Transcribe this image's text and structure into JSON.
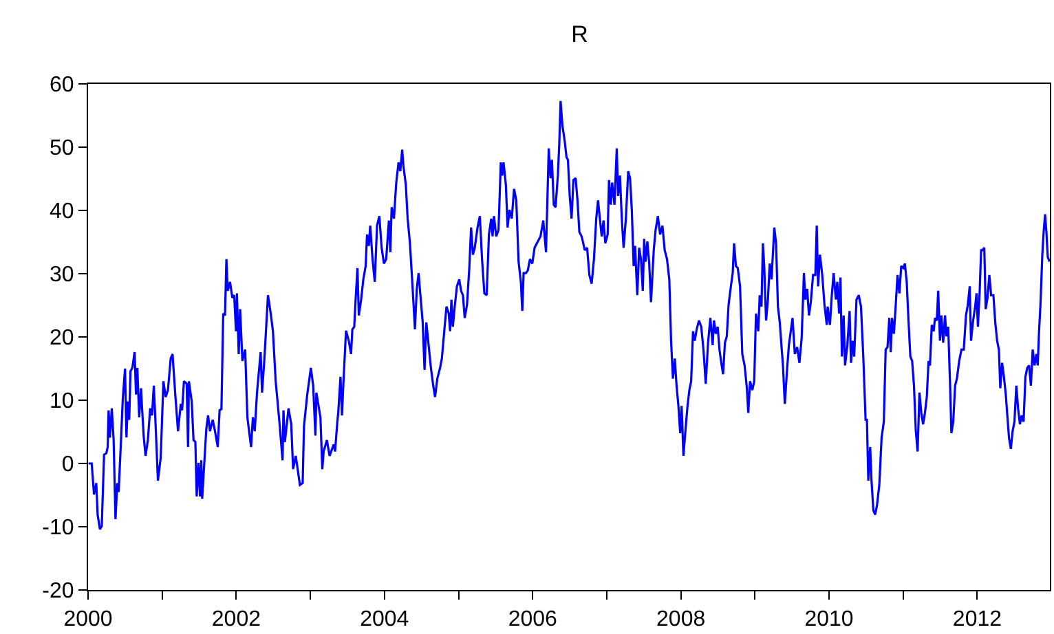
{
  "chart_data": {
    "type": "line",
    "title": "R",
    "x": [
      2000.006,
      2000.049,
      2000.08,
      2000.111,
      2000.129,
      2000.16,
      2000.185,
      2000.216,
      2000.246,
      2000.265,
      2000.277,
      2000.296,
      2000.32,
      2000.345,
      2000.37,
      2000.394,
      2000.413,
      2000.45,
      2000.468,
      2000.499,
      2000.518,
      2000.536,
      2000.555,
      2000.573,
      2000.598,
      2000.628,
      2000.647,
      2000.665,
      2000.69,
      2000.715,
      2000.727,
      2000.752,
      2000.776,
      2000.807,
      2000.838,
      2000.863,
      2000.887,
      2000.906,
      2000.943,
      2000.98,
      2001.017,
      2001.047,
      2001.078,
      2001.115,
      2001.14,
      2001.177,
      2001.214,
      2001.251,
      2001.269,
      2001.294,
      2001.331,
      2001.349,
      2001.361,
      2001.399,
      2001.423,
      2001.448,
      2001.466,
      2001.491,
      2001.51,
      2001.528,
      2001.54,
      2001.565,
      2001.596,
      2001.62,
      2001.645,
      2001.682,
      2001.713,
      2001.75,
      2001.775,
      2001.8,
      2001.824,
      2001.848,
      2001.867,
      2001.885,
      2001.916,
      2001.947,
      2001.972,
      2001.996,
      2002.009,
      2002.033,
      2002.052,
      2002.083,
      2002.12,
      2002.15,
      2002.2,
      2002.224,
      2002.249,
      2002.28,
      2002.329,
      2002.348,
      2002.378,
      2002.428,
      2002.465,
      2002.495,
      2002.532,
      2002.582,
      2002.625,
      2002.637,
      2002.656,
      2002.705,
      2002.742,
      2002.767,
      2002.803,
      2002.859,
      2002.896,
      2002.914,
      2002.958,
      2003.007,
      2003.038,
      2003.068,
      2003.081,
      2003.136,
      2003.161,
      2003.179,
      2003.223,
      2003.259,
      2003.315,
      2003.333,
      2003.364,
      2003.376,
      2003.407,
      2003.426,
      2003.45,
      2003.481,
      2003.518,
      2003.549,
      2003.567,
      2003.592,
      2003.611,
      2003.635,
      2003.654,
      2003.685,
      2003.715,
      2003.746,
      2003.765,
      2003.789,
      2003.808,
      2003.839,
      2003.869,
      2003.9,
      2003.931,
      2003.962,
      2003.993,
      2004.023,
      2004.06,
      2004.079,
      2004.097,
      2004.128,
      2004.159,
      2004.19,
      2004.214,
      2004.239,
      2004.257,
      2004.288,
      2004.313,
      2004.344,
      2004.368,
      2004.393,
      2004.411,
      2004.436,
      2004.461,
      2004.485,
      2004.516,
      2004.541,
      2004.565,
      2004.59,
      2004.627,
      2004.658,
      2004.683,
      2004.713,
      2004.75,
      2004.775,
      2004.812,
      2004.837,
      2004.868,
      2004.886,
      2004.904,
      2004.923,
      2004.948,
      2004.978,
      2005.009,
      2005.034,
      2005.059,
      2005.083,
      2005.114,
      2005.145,
      2005.169,
      2005.194,
      2005.219,
      2005.256,
      2005.287,
      2005.317,
      2005.348,
      2005.379,
      2005.41,
      2005.441,
      2005.459,
      2005.478,
      2005.508,
      2005.539,
      2005.57,
      2005.588,
      2005.607,
      2005.638,
      2005.662,
      2005.687,
      2005.718,
      2005.749,
      2005.779,
      2005.81,
      2005.841,
      2005.86,
      2005.878,
      2005.909,
      2005.934,
      2005.964,
      2005.995,
      2006.026,
      2006.057,
      2006.106,
      2006.143,
      2006.18,
      2006.217,
      2006.242,
      2006.26,
      2006.285,
      2006.309,
      2006.34,
      2006.359,
      2006.377,
      2006.402,
      2006.433,
      2006.457,
      2006.476,
      2006.5,
      2006.525,
      2006.55,
      2006.58,
      2006.605,
      2006.63,
      2006.661,
      2006.704,
      2006.735,
      2006.765,
      2006.796,
      2006.827,
      2006.858,
      2006.882,
      2006.907,
      2006.932,
      2006.956,
      2006.981,
      2007.012,
      2007.03,
      2007.055,
      2007.073,
      2007.104,
      2007.135,
      2007.153,
      2007.178,
      2007.203,
      2007.227,
      2007.258,
      2007.289,
      2007.314,
      2007.338,
      2007.363,
      2007.382,
      2007.412,
      2007.437,
      2007.462,
      2007.486,
      2007.505,
      2007.523,
      2007.548,
      2007.573,
      2007.597,
      2007.634,
      2007.659,
      2007.69,
      2007.72,
      2007.751,
      2007.782,
      2007.813,
      2007.844,
      2007.868,
      2007.893,
      2007.918,
      2007.942,
      2007.967,
      2007.991,
      2008.01,
      2008.035,
      2008.059,
      2008.09,
      2008.115,
      2008.139,
      2008.164,
      2008.188,
      2008.213,
      2008.244,
      2008.275,
      2008.305,
      2008.336,
      2008.367,
      2008.398,
      2008.429,
      2008.447,
      2008.472,
      2008.497,
      2008.521,
      2008.546,
      2008.57,
      2008.595,
      2008.62,
      2008.644,
      2008.675,
      2008.7,
      2008.718,
      2008.743,
      2008.768,
      2008.799,
      2008.829,
      2008.86,
      2008.891,
      2008.91,
      2008.934,
      2008.965,
      2008.99,
      2009.014,
      2009.045,
      2009.064,
      2009.088,
      2009.107,
      2009.125,
      2009.15,
      2009.175,
      2009.199,
      2009.224,
      2009.261,
      2009.285,
      2009.31,
      2009.335,
      2009.359,
      2009.378,
      2009.403,
      2009.433,
      2009.458,
      2009.483,
      2009.507,
      2009.538,
      2009.569,
      2009.6,
      2009.63,
      2009.661,
      2009.68,
      2009.704,
      2009.729,
      2009.754,
      2009.784,
      2009.815,
      2009.834,
      2009.852,
      2009.877,
      2009.908,
      2009.938,
      2009.969,
      2009.981,
      2010.012,
      2010.037,
      2010.062,
      2010.092,
      2010.111,
      2010.136,
      2010.154,
      2010.173,
      2010.197,
      2010.216,
      2010.247,
      2010.277,
      2010.296,
      2010.32,
      2010.339,
      2010.37,
      2010.401,
      2010.431,
      2010.462,
      2010.493,
      2010.511,
      2010.53,
      2010.555,
      2010.573,
      2010.598,
      2010.622,
      2010.647,
      2010.678,
      2010.709,
      2010.739,
      2010.764,
      2010.789,
      2010.813,
      2010.832,
      2010.85,
      2010.875,
      2010.9,
      2010.924,
      2010.949,
      2010.974,
      2011.004,
      2011.023,
      2011.048,
      2011.072,
      2011.097,
      2011.121,
      2011.146,
      2011.171,
      2011.195,
      2011.22,
      2011.245,
      2011.269,
      2011.294,
      2011.319,
      2011.343,
      2011.362,
      2011.386,
      2011.411,
      2011.43,
      2011.454,
      2011.473,
      2011.497,
      2011.516,
      2011.54,
      2011.565,
      2011.584,
      2011.608,
      2011.633,
      2011.651,
      2011.676,
      2011.701,
      2011.725,
      2011.756,
      2011.787,
      2011.818,
      2011.848,
      2011.873,
      2011.898,
      2011.916,
      2011.941,
      2011.972,
      2011.99,
      2012.009,
      2012.033,
      2012.052,
      2012.07,
      2012.095,
      2012.114,
      2012.138,
      2012.163,
      2012.187,
      2012.218,
      2012.243,
      2012.268,
      2012.292,
      2012.311,
      2012.335,
      2012.36,
      2012.385,
      2012.403,
      2012.428,
      2012.453,
      2012.477,
      2012.502,
      2012.527,
      2012.551,
      2012.576,
      2012.6,
      2012.625,
      2012.65,
      2012.674,
      2012.699,
      2012.724,
      2012.748,
      2012.773,
      2012.798,
      2012.816,
      2012.834,
      2012.853,
      2012.878,
      2012.896,
      2012.915,
      2012.933,
      2012.952,
      2012.976
    ],
    "series": [
      {
        "color": "#0000ff",
        "values": [
          0,
          0,
          -4.9,
          -3.1,
          -8.1,
          -10.4,
          -9.9,
          1.4,
          1.6,
          2.6,
          8.4,
          4.1,
          8.7,
          3.7,
          -8.8,
          -3.1,
          -4.5,
          5.1,
          10.1,
          15,
          4.1,
          9.8,
          6.9,
          14.6,
          15.1,
          17.6,
          10.9,
          15.1,
          7.3,
          11.9,
          9.1,
          4.1,
          1.2,
          3.7,
          8.7,
          7.6,
          12.3,
          7.6,
          -2.7,
          0.9,
          13,
          10.5,
          11.6,
          16.6,
          17.3,
          10.9,
          5.1,
          9.4,
          8.4,
          13,
          12.6,
          2.6,
          13,
          9.8,
          3.7,
          3.4,
          -5.2,
          0.1,
          -5.2,
          0.5,
          -5.6,
          -0.6,
          5.5,
          7.6,
          5.1,
          6.9,
          5.1,
          2.6,
          8.4,
          8.6,
          23.7,
          23.4,
          32.3,
          27.3,
          28.7,
          26.2,
          26.6,
          20.9,
          26.9,
          17.3,
          24.4,
          16.2,
          18,
          7.3,
          2.6,
          7.3,
          5.1,
          11.2,
          17.6,
          11.2,
          16.2,
          26.6,
          23.7,
          20.9,
          13,
          6.6,
          0.5,
          8.4,
          3.4,
          8.7,
          6.2,
          -0.9,
          1.2,
          -3.4,
          -3.1,
          5.9,
          10.9,
          15.1,
          12.3,
          4.4,
          11.2,
          7.3,
          -0.9,
          1.9,
          3.7,
          1.2,
          3.0,
          1.9,
          6.6,
          8,
          13.7,
          7.6,
          13.7,
          21,
          19.4,
          17.3,
          21.2,
          21.6,
          25.9,
          30.9,
          23.4,
          25.9,
          29.1,
          31.2,
          36.2,
          34.4,
          37.6,
          32.3,
          28.7,
          37.6,
          39.1,
          34.1,
          31.6,
          32.3,
          38.4,
          33.4,
          40.5,
          38.7,
          44.4,
          47.6,
          46.2,
          49.6,
          46.9,
          44.1,
          38.7,
          34.8,
          30.1,
          25.1,
          21.2,
          27.6,
          30.1,
          26.6,
          22.3,
          14.8,
          22.3,
          19.4,
          15.1,
          12.3,
          10.5,
          13.4,
          15.1,
          16.6,
          21.6,
          24.8,
          23.7,
          20.9,
          25.9,
          21.6,
          24.8,
          28,
          29.1,
          27.3,
          26.6,
          23,
          25.1,
          30.9,
          37.3,
          33,
          34.1,
          37.3,
          39.1,
          32.3,
          26.9,
          26.6,
          36.2,
          38.7,
          35.9,
          39.1,
          35.9,
          36.9,
          47.6,
          45.5,
          47.6,
          44.1,
          37.3,
          40.1,
          38.7,
          43.4,
          41.6,
          31.9,
          28.7,
          24.1,
          30.1,
          30.1,
          30.5,
          32.3,
          31.6,
          34.1,
          34.8,
          35.9,
          38.4,
          33.4,
          49.8,
          45.1,
          48,
          40.9,
          40.5,
          45.5,
          50.5,
          57.3,
          53.4,
          50.9,
          48.4,
          48,
          42.3,
          38.7,
          44.8,
          45.1,
          41.6,
          36.6,
          35.9,
          33.7,
          34.1,
          29.8,
          28.4,
          32.3,
          38.7,
          41.6,
          38.7,
          35.9,
          38.4,
          34.8,
          36.2,
          44.8,
          40.9,
          44.4,
          40.9,
          49.8,
          42.3,
          45.5,
          38.7,
          34.1,
          38.7,
          46.2,
          45.1,
          40.1,
          31.2,
          34.4,
          26.6,
          34.1,
          32.3,
          27.3,
          35.5,
          31.9,
          35.1,
          31.6,
          25.5,
          33.7,
          36.9,
          39.1,
          36.2,
          37.6,
          33.7,
          32.3,
          29.1,
          19.4,
          13.4,
          16.6,
          12.3,
          9.1,
          4.8,
          9.1,
          1.2,
          4.8,
          9.1,
          11.6,
          13,
          20.9,
          19.4,
          21.2,
          22.6,
          21.6,
          18,
          12.6,
          19.1,
          23,
          18.7,
          22.6,
          20.5,
          21.6,
          18,
          15.9,
          14.1,
          19.1,
          20.1,
          25.1,
          28,
          30.1,
          34.8,
          31.2,
          30.9,
          28,
          17.3,
          15.5,
          11.9,
          8,
          13,
          11.6,
          13,
          23.7,
          20.9,
          26.6,
          24.8,
          34.8,
          31.2,
          22.6,
          25.9,
          31.6,
          29.1,
          37.3,
          34.8,
          24.8,
          22.3,
          18.4,
          15.5,
          9.4,
          14.8,
          18.7,
          20.9,
          23,
          17.3,
          18.4,
          15.9,
          19.8,
          30.1,
          25.9,
          27.6,
          23.4,
          25.5,
          29.8,
          29.8,
          37.6,
          28,
          33,
          29.8,
          25.1,
          21.9,
          24.8,
          21.9,
          26.6,
          30.1,
          25.9,
          28.7,
          23.7,
          29.4,
          16.9,
          23.4,
          15.5,
          18.7,
          24.1,
          15.9,
          19.4,
          16.9,
          25.9,
          26.6,
          24.8,
          16.9,
          6.9,
          6.9,
          -2.7,
          2.6,
          -2.7,
          -7.4,
          -8.1,
          -6.6,
          -3.4,
          4.1,
          6.6,
          18,
          18.4,
          23,
          17.6,
          23,
          20.5,
          25.1,
          29.8,
          26.9,
          31.2,
          30.9,
          31.6,
          28.7,
          22.6,
          16.9,
          16.2,
          12.3,
          5.1,
          1.9,
          11.2,
          8,
          6.2,
          8,
          10.5,
          16.2,
          15.5,
          21.9,
          20.9,
          23,
          22.6,
          27.3,
          19.4,
          23.4,
          19.1,
          23.4,
          20.1,
          21.6,
          12.6,
          4.8,
          6.6,
          12.3,
          13.4,
          16.2,
          18,
          18,
          23.4,
          25.1,
          28,
          19.4,
          22.3,
          24.8,
          26.9,
          21.6,
          27.3,
          33.7,
          33.7,
          34.1,
          24.4,
          26.2,
          29.8,
          26.6,
          26.6,
          22.3,
          19.4,
          18,
          11.9,
          15.9,
          13.7,
          10.9,
          8,
          4.1,
          2.3,
          5.1,
          6.6,
          12.3,
          8.7,
          6.2,
          7.6,
          6.6,
          13.7,
          15.1,
          15.5,
          12.3,
          18,
          15.5,
          17.3,
          15.5,
          20.9,
          25.1,
          33,
          36.6,
          39.4,
          36.6,
          32.6,
          31.9
        ]
      }
    ],
    "xlim": [
      2000,
      2012.98
    ],
    "xticks": [
      2000,
      {
        "value": 2001,
        "label": null
      },
      2002,
      {
        "value": 2003,
        "label": null
      },
      2004,
      {
        "value": 2005,
        "label": null
      },
      2006,
      {
        "value": 2007,
        "label": null
      },
      2008,
      {
        "value": 2009,
        "label": null
      },
      2010,
      {
        "value": 2011,
        "label": null
      },
      2012
    ],
    "ylim": [
      -20,
      60
    ],
    "yticks": [
      -20,
      -10,
      0,
      10,
      20,
      30,
      40,
      50,
      60
    ],
    "marker": "none",
    "line_style": "solid"
  }
}
